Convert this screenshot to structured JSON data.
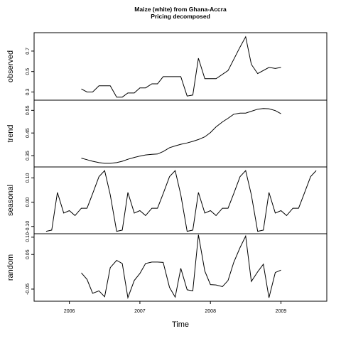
{
  "chart_data": {
    "type": "line",
    "title": "Maize (white) from Ghana-Accra",
    "subtitle": "Pricing decomposed",
    "xlabel": "Time",
    "x_ticks": [
      "2006",
      "2007",
      "2008",
      "2009"
    ],
    "xlim": [
      2005.5,
      2009.65
    ],
    "series": [
      {
        "name": "observed",
        "ylim": [
          0.22,
          0.88
        ],
        "y_ticks": [
          0.3,
          0.5,
          0.7
        ],
        "y_tick_labels": [
          "0.3",
          "0.5",
          "0.7"
        ],
        "x": [
          2006.17,
          2006.25,
          2006.33,
          2006.42,
          2006.5,
          2006.58,
          2006.67,
          2006.75,
          2006.83,
          2006.92,
          2007.0,
          2007.08,
          2007.17,
          2007.25,
          2007.33,
          2007.42,
          2007.5,
          2007.58,
          2007.67,
          2007.75,
          2007.83,
          2007.92,
          2008.08,
          2008.25,
          2008.42,
          2008.5,
          2008.58,
          2008.67,
          2008.83,
          2008.92,
          2009.0
        ],
        "values": [
          0.33,
          0.3,
          0.3,
          0.36,
          0.36,
          0.36,
          0.25,
          0.25,
          0.29,
          0.29,
          0.34,
          0.34,
          0.38,
          0.38,
          0.45,
          0.45,
          0.45,
          0.45,
          0.26,
          0.27,
          0.63,
          0.43,
          0.43,
          0.51,
          0.74,
          0.84,
          0.57,
          0.48,
          0.54,
          0.53,
          0.54
        ]
      },
      {
        "name": "trend",
        "ylim": [
          0.3,
          0.595
        ],
        "y_ticks": [
          0.35,
          0.45,
          0.55
        ],
        "y_tick_labels": [
          "0.35",
          "0.45",
          "0.55"
        ],
        "x": [
          2006.17,
          2006.25,
          2006.33,
          2006.42,
          2006.5,
          2006.58,
          2006.67,
          2006.75,
          2006.83,
          2006.92,
          2007.0,
          2007.08,
          2007.17,
          2007.25,
          2007.33,
          2007.42,
          2007.5,
          2007.58,
          2007.67,
          2007.75,
          2007.83,
          2007.92,
          2008.0,
          2008.08,
          2008.17,
          2008.25,
          2008.33,
          2008.42,
          2008.5,
          2008.58,
          2008.67,
          2008.75,
          2008.83,
          2008.92,
          2009.0
        ],
        "values": [
          0.339,
          0.332,
          0.325,
          0.319,
          0.316,
          0.316,
          0.319,
          0.325,
          0.334,
          0.342,
          0.348,
          0.353,
          0.356,
          0.357,
          0.368,
          0.385,
          0.393,
          0.4,
          0.406,
          0.413,
          0.421,
          0.433,
          0.452,
          0.477,
          0.499,
          0.515,
          0.533,
          0.538,
          0.538,
          0.546,
          0.555,
          0.558,
          0.557,
          0.549,
          0.535
        ]
      },
      {
        "name": "seasonal",
        "ylim": [
          -0.13,
          0.145
        ],
        "y_ticks": [
          -0.1,
          0.0,
          0.1
        ],
        "y_tick_labels": [
          "-0.10",
          "0.00",
          "0.10"
        ],
        "x": [
          2005.67,
          2005.75,
          2005.83,
          2005.92,
          2006.0,
          2006.08,
          2006.17,
          2006.25,
          2006.33,
          2006.42,
          2006.5,
          2006.58,
          2006.67,
          2006.75,
          2006.83,
          2006.92,
          2007.0,
          2007.08,
          2007.17,
          2007.25,
          2007.33,
          2007.42,
          2007.5,
          2007.58,
          2007.67,
          2007.75,
          2007.83,
          2007.92,
          2008.0,
          2008.08,
          2008.17,
          2008.25,
          2008.33,
          2008.42,
          2008.5,
          2008.58,
          2008.67,
          2008.75,
          2008.83,
          2008.92,
          2009.0,
          2009.08,
          2009.17,
          2009.25,
          2009.33,
          2009.42,
          2009.5
        ],
        "values": [
          -0.12,
          -0.115,
          0.04,
          -0.045,
          -0.035,
          -0.055,
          -0.025,
          -0.025,
          0.035,
          0.105,
          0.13,
          0.03,
          -0.12,
          -0.115,
          0.04,
          -0.045,
          -0.035,
          -0.055,
          -0.025,
          -0.025,
          0.035,
          0.105,
          0.13,
          0.03,
          -0.12,
          -0.115,
          0.04,
          -0.045,
          -0.035,
          -0.055,
          -0.025,
          -0.025,
          0.035,
          0.105,
          0.13,
          0.03,
          -0.12,
          -0.115,
          0.04,
          -0.045,
          -0.035,
          -0.055,
          -0.025,
          -0.025,
          0.035,
          0.105,
          0.13
        ]
      },
      {
        "name": "random",
        "ylim": [
          -0.085,
          0.11
        ],
        "y_ticks": [
          -0.05,
          0.05,
          0.1
        ],
        "y_tick_labels": [
          "-0.05",
          "0.05",
          "0.10"
        ],
        "x": [
          2006.17,
          2006.25,
          2006.33,
          2006.42,
          2006.5,
          2006.58,
          2006.67,
          2006.75,
          2006.83,
          2006.92,
          2007.0,
          2007.08,
          2007.17,
          2007.25,
          2007.33,
          2007.42,
          2007.5,
          2007.58,
          2007.67,
          2007.75,
          2007.83,
          2007.92,
          2008.0,
          2008.08,
          2008.17,
          2008.25,
          2008.33,
          2008.42,
          2008.5,
          2008.58,
          2008.67,
          2008.75,
          2008.83,
          2008.92,
          2009.0
        ],
        "values": [
          -0.003,
          -0.022,
          -0.062,
          -0.055,
          -0.072,
          0.012,
          0.033,
          0.024,
          -0.075,
          -0.025,
          -0.005,
          0.024,
          0.028,
          0.028,
          0.027,
          -0.045,
          -0.073,
          0.01,
          -0.052,
          -0.055,
          0.107,
          0.002,
          -0.037,
          -0.038,
          -0.043,
          -0.025,
          0.027,
          0.07,
          0.103,
          -0.028,
          0.0,
          0.022,
          -0.075,
          -0.002,
          0.005
        ]
      }
    ],
    "line_color": "#000000"
  }
}
